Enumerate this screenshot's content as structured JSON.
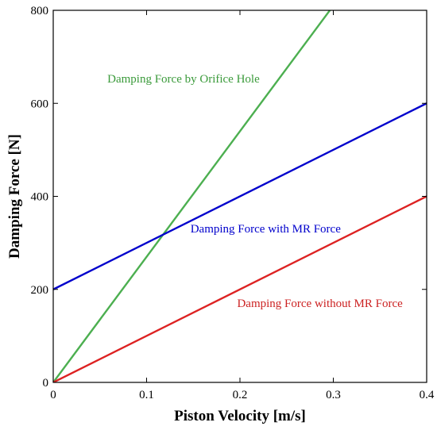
{
  "chart_data": {
    "type": "line",
    "xlabel": "Piston Velocity [m/s]",
    "ylabel": "Damping Force [N]",
    "xlim": [
      0,
      0.4
    ],
    "ylim": [
      0,
      800
    ],
    "x_ticks": [
      0,
      0.1,
      0.2,
      0.3,
      0.4
    ],
    "x_tick_labels": [
      "0",
      "0.1",
      "0.2",
      "0.3",
      "0.4"
    ],
    "y_ticks": [
      0,
      200,
      400,
      600,
      800
    ],
    "y_tick_labels": [
      "0",
      "200",
      "400",
      "600",
      "800"
    ],
    "grid": false,
    "series": [
      {
        "name": "Damping Force by Orifice Hole",
        "color": "#4caf50",
        "x": [
          0,
          0.3
        ],
        "y": [
          0,
          810
        ]
      },
      {
        "name": "Damping Force with MR Force",
        "color": "#0000cc",
        "x": [
          0,
          0.4
        ],
        "y": [
          200,
          600
        ]
      },
      {
        "name": "Damping Force without MR Force",
        "color": "#dd2222",
        "x": [
          0,
          0.4
        ],
        "y": [
          0,
          400
        ]
      }
    ],
    "annotations": [
      {
        "text": "Damping Force by Orifice Hole",
        "x": 0.058,
        "y": 645,
        "color": "#3a9a3a"
      },
      {
        "text": "Damping Force with MR Force",
        "x": 0.147,
        "y": 322,
        "color": "#0000cc"
      },
      {
        "text": "Damping Force without MR Force",
        "x": 0.197,
        "y": 162,
        "color": "#cc2222"
      }
    ]
  }
}
